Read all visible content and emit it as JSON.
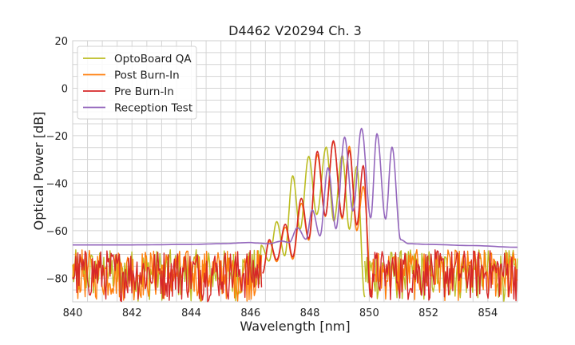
{
  "chart_data": {
    "type": "line",
    "title": "D4462 V20294 Ch. 3",
    "xlabel": "Wavelength [nm]",
    "ylabel": "Optical Power [dB]",
    "xlim": [
      840,
      855
    ],
    "ylim": [
      -90,
      20
    ],
    "xticks": [
      840,
      842,
      844,
      846,
      848,
      850,
      852,
      854
    ],
    "yticks": [
      20,
      0,
      -20,
      -40,
      -60,
      -80
    ],
    "grid": true,
    "legend_position": "top-left",
    "noise_floor_range": [
      -90,
      -68
    ],
    "series": [
      {
        "name": "OptoBoard QA",
        "color": "#bcbd22",
        "noise_regions": [
          [
            840,
            846.3
          ],
          [
            849.85,
            855
          ]
        ],
        "points": [
          [
            846.3,
            -80
          ],
          [
            846.36,
            -66.2
          ],
          [
            846.62,
            -72.8
          ],
          [
            846.88,
            -56.2
          ],
          [
            847.15,
            -70.6
          ],
          [
            847.42,
            -36.9
          ],
          [
            847.67,
            -59.4
          ],
          [
            847.96,
            -28.7
          ],
          [
            848.23,
            -53.2
          ],
          [
            848.55,
            -24.8
          ],
          [
            848.81,
            -56
          ],
          [
            849.09,
            -28.3
          ],
          [
            849.33,
            -59.4
          ],
          [
            849.58,
            -33
          ],
          [
            849.85,
            -88
          ]
        ]
      },
      {
        "name": "Post Burn-In",
        "color": "#ff7f0e",
        "noise_regions": [
          [
            840,
            846.4
          ],
          [
            850.1,
            855
          ]
        ],
        "points": [
          [
            846.4,
            -78
          ],
          [
            846.63,
            -64.5
          ],
          [
            846.88,
            -73
          ],
          [
            847.17,
            -58.5
          ],
          [
            847.42,
            -72
          ],
          [
            847.71,
            -48.5
          ],
          [
            847.96,
            -64
          ],
          [
            848.25,
            -28
          ],
          [
            848.52,
            -54
          ],
          [
            848.79,
            -22.5
          ],
          [
            849.09,
            -55
          ],
          [
            849.33,
            -24.5
          ],
          [
            849.58,
            -60
          ],
          [
            849.8,
            -41.4
          ],
          [
            850.1,
            -88
          ]
        ]
      },
      {
        "name": "Pre Burn-In",
        "color": "#d62728",
        "noise_regions": [
          [
            840,
            846.4
          ],
          [
            850.05,
            855
          ]
        ],
        "points": [
          [
            846.4,
            -78
          ],
          [
            846.63,
            -63.8
          ],
          [
            846.88,
            -72.3
          ],
          [
            847.17,
            -57.3
          ],
          [
            847.42,
            -71.1
          ],
          [
            847.71,
            -46.4
          ],
          [
            847.96,
            -63.3
          ],
          [
            848.25,
            -26.6
          ],
          [
            848.52,
            -53.7
          ],
          [
            848.79,
            -22.1
          ],
          [
            849.09,
            -54.3
          ],
          [
            849.33,
            -26.2
          ],
          [
            849.58,
            -57.6
          ],
          [
            849.8,
            -32.6
          ],
          [
            850.05,
            -88
          ]
        ]
      },
      {
        "name": "Reception Test",
        "color": "#9467bd",
        "noise_regions": [],
        "points": [
          [
            840,
            -66
          ],
          [
            842,
            -66
          ],
          [
            844,
            -65.8
          ],
          [
            845,
            -65.5
          ],
          [
            846,
            -65
          ],
          [
            846.17,
            -65.2
          ],
          [
            846.6,
            -65.5
          ],
          [
            847.06,
            -64.4
          ],
          [
            847.3,
            -65
          ],
          [
            847.58,
            -58.8
          ],
          [
            847.87,
            -63.6
          ],
          [
            848.08,
            -51.3
          ],
          [
            848.34,
            -62.2
          ],
          [
            848.61,
            -33.5
          ],
          [
            848.88,
            -59.2
          ],
          [
            849.17,
            -20.6
          ],
          [
            849.45,
            -51.7
          ],
          [
            849.74,
            -16.9
          ],
          [
            850.05,
            -54.6
          ],
          [
            850.26,
            -19.2
          ],
          [
            850.55,
            -55.1
          ],
          [
            850.77,
            -24.8
          ],
          [
            851.06,
            -63.8
          ],
          [
            851.33,
            -65.5
          ],
          [
            852,
            -65.8
          ],
          [
            853.5,
            -66.3
          ],
          [
            855,
            -67
          ]
        ]
      }
    ]
  }
}
